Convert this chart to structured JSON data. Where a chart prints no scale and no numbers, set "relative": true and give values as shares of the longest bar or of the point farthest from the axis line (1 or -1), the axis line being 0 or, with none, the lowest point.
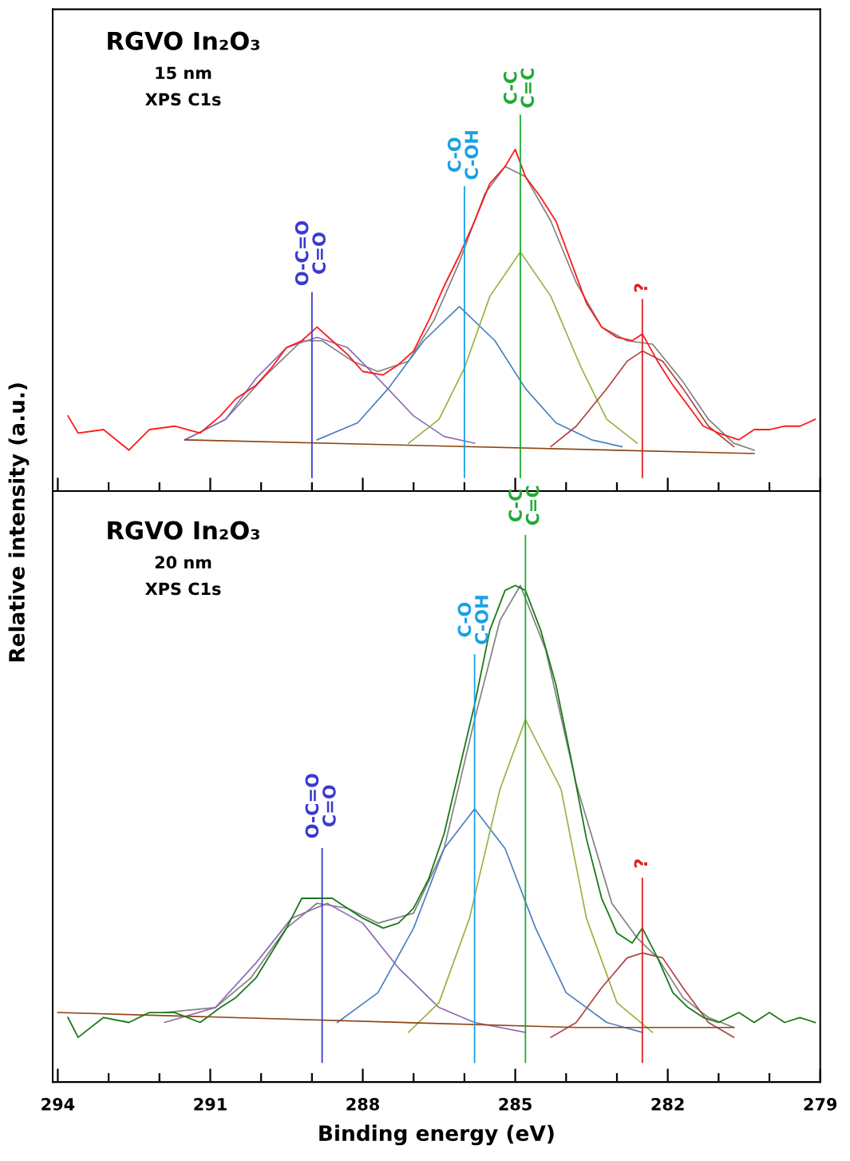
{
  "chart_data": [
    {
      "type": "line",
      "relative": true,
      "ylabel": "Relative intensity (a.u.)",
      "tick_labels": false,
      "xlim": [
        294.1,
        279.0
      ],
      "xticks": [
        294,
        {
          "value": 293,
          "label": null
        },
        {
          "value": 292,
          "label": null
        },
        291,
        {
          "value": 290,
          "label": null
        },
        {
          "value": 289,
          "label": null
        },
        288,
        {
          "value": 287,
          "label": null
        },
        {
          "value": 286,
          "label": null
        },
        285,
        {
          "value": 284,
          "label": null
        },
        {
          "value": 283,
          "label": null
        },
        282,
        {
          "value": 281,
          "label": null
        },
        {
          "value": 280,
          "label": null
        },
        279
      ],
      "annotations": [
        "RGVO In₂O₃",
        "15 nm",
        "XPS C1s"
      ],
      "ref_lines": [
        {
          "axis": "x",
          "value": 289.0,
          "label": "O-C=O\nC=O",
          "color": "#3a3ad0"
        },
        {
          "axis": "x",
          "value": 286.0,
          "label": "C-O\nC-OH",
          "color": "#1aa0e6"
        },
        {
          "axis": "x",
          "value": 284.9,
          "label": "C-C\nC=C",
          "color": "#22aa33"
        },
        {
          "axis": "x",
          "value": 282.5,
          "label": "?",
          "color": "#e02020"
        }
      ],
      "series": [
        {
          "color": "#808080",
          "x": [
            291.5,
            290.7,
            289.9,
            289.2,
            288.8,
            288.2,
            287.7,
            287.1,
            286.6,
            286.1,
            285.6,
            285.2,
            284.8,
            284.3,
            283.8,
            283.3,
            282.8,
            282.3,
            281.7,
            281.2,
            280.7,
            280.3
          ],
          "values": [
            0.15,
            0.21,
            0.34,
            0.44,
            0.44,
            0.38,
            0.35,
            0.38,
            0.5,
            0.67,
            0.87,
            0.95,
            0.92,
            0.79,
            0.61,
            0.48,
            0.44,
            0.43,
            0.32,
            0.21,
            0.14,
            0.12
          ]
        },
        {
          "color": "#8f6bb5",
          "x": [
            291.5,
            290.7,
            290.1,
            289.5,
            288.9,
            288.3,
            287.7,
            287.0,
            286.4,
            285.8
          ],
          "values": [
            0.15,
            0.21,
            0.33,
            0.42,
            0.45,
            0.42,
            0.33,
            0.22,
            0.16,
            0.14
          ]
        },
        {
          "color": "#4a7fc0",
          "x": [
            288.9,
            288.1,
            287.5,
            286.8,
            286.1,
            285.4,
            284.8,
            284.2,
            283.5,
            282.9
          ],
          "values": [
            0.15,
            0.2,
            0.3,
            0.44,
            0.54,
            0.44,
            0.3,
            0.2,
            0.15,
            0.13
          ]
        },
        {
          "color": "#9bb040",
          "x": [
            287.1,
            286.5,
            286.0,
            285.5,
            284.9,
            284.3,
            283.7,
            283.2,
            282.6
          ],
          "values": [
            0.14,
            0.21,
            0.36,
            0.57,
            0.7,
            0.57,
            0.36,
            0.21,
            0.14
          ]
        },
        {
          "color": "#b04040",
          "x": [
            284.3,
            283.8,
            283.2,
            282.8,
            282.5,
            282.1,
            281.7,
            281.2,
            280.7
          ],
          "values": [
            0.13,
            0.19,
            0.3,
            0.38,
            0.41,
            0.38,
            0.3,
            0.19,
            0.13
          ]
        },
        {
          "color": "#8b4513",
          "x": [
            291.5,
            280.3
          ],
          "values": [
            0.15,
            0.11
          ]
        },
        {
          "color": "#ff1a1a",
          "x": [
            293.8,
            293.6,
            293.1,
            292.6,
            292.2,
            291.7,
            291.2,
            290.8,
            290.5,
            290.1,
            289.8,
            289.5,
            289.2,
            288.9,
            288.6,
            288.3,
            288.0,
            287.6,
            287.3,
            287.0,
            286.7,
            286.4,
            286.1,
            285.8,
            285.5,
            285.2,
            285.0,
            284.8,
            284.5,
            284.2,
            283.9,
            283.6,
            283.3,
            283.0,
            282.7,
            282.5,
            282.2,
            281.9,
            281.6,
            281.3,
            281.0,
            280.6,
            280.3,
            280.0,
            279.7,
            279.4,
            279.1
          ],
          "values": [
            0.22,
            0.17,
            0.18,
            0.12,
            0.18,
            0.19,
            0.17,
            0.22,
            0.27,
            0.31,
            0.36,
            0.42,
            0.44,
            0.48,
            0.44,
            0.4,
            0.35,
            0.34,
            0.37,
            0.41,
            0.5,
            0.6,
            0.69,
            0.79,
            0.9,
            0.95,
            1.0,
            0.92,
            0.86,
            0.79,
            0.67,
            0.55,
            0.48,
            0.45,
            0.44,
            0.46,
            0.38,
            0.31,
            0.25,
            0.19,
            0.17,
            0.15,
            0.18,
            0.18,
            0.19,
            0.19,
            0.21
          ]
        }
      ]
    },
    {
      "type": "line",
      "relative": true,
      "xlabel": "Binding energy (eV)",
      "tick_labels": "x",
      "xlim": [
        294.1,
        279.0
      ],
      "xticks": [
        294,
        {
          "value": 293,
          "label": null
        },
        {
          "value": 292,
          "label": null
        },
        291,
        {
          "value": 290,
          "label": null
        },
        {
          "value": 289,
          "label": null
        },
        288,
        {
          "value": 287,
          "label": null
        },
        {
          "value": 286,
          "label": null
        },
        285,
        {
          "value": 284,
          "label": null
        },
        {
          "value": 283,
          "label": null
        },
        282,
        {
          "value": 281,
          "label": null
        },
        {
          "value": 280,
          "label": null
        },
        279
      ],
      "annotations": [
        "RGVO In₂O₃",
        "20 nm",
        "XPS C1s"
      ],
      "ref_lines": [
        {
          "axis": "x",
          "value": 288.8,
          "label": "O-C=O\nC=O",
          "color": "#3a3ad0"
        },
        {
          "axis": "x",
          "value": 285.8,
          "label": "C-O\nC-OH",
          "color": "#1aa0e6"
        },
        {
          "axis": "x",
          "value": 284.8,
          "label": "C-C\nC=C",
          "color": "#22aa33"
        },
        {
          "axis": "x",
          "value": 282.5,
          "label": "?",
          "color": "#e02020"
        }
      ],
      "series": [
        {
          "color": "#808080",
          "x": [
            291.9,
            290.9,
            290.2,
            289.5,
            288.9,
            288.3,
            287.7,
            287.0,
            286.4,
            285.8,
            285.3,
            284.9,
            284.4,
            283.8,
            283.1,
            282.6,
            282.2,
            281.7,
            281.2,
            280.7
          ],
          "values": [
            0.14,
            0.15,
            0.21,
            0.31,
            0.36,
            0.35,
            0.32,
            0.34,
            0.47,
            0.73,
            0.93,
            1.0,
            0.87,
            0.6,
            0.36,
            0.29,
            0.25,
            0.17,
            0.13,
            0.11
          ]
        },
        {
          "color": "#8f6bb5",
          "x": [
            291.9,
            290.9,
            290.1,
            289.4,
            288.7,
            288.0,
            287.3,
            286.5,
            285.8,
            284.8
          ],
          "values": [
            0.12,
            0.15,
            0.24,
            0.33,
            0.36,
            0.32,
            0.23,
            0.15,
            0.12,
            0.1
          ]
        },
        {
          "color": "#4a7fc0",
          "x": [
            288.5,
            287.7,
            287.0,
            286.4,
            285.8,
            285.2,
            284.6,
            284.0,
            283.2,
            282.5
          ],
          "values": [
            0.12,
            0.18,
            0.31,
            0.47,
            0.55,
            0.47,
            0.31,
            0.18,
            0.12,
            0.1
          ]
        },
        {
          "color": "#9bb040",
          "x": [
            287.1,
            286.5,
            285.9,
            285.3,
            284.8,
            284.1,
            283.6,
            283.0,
            282.3
          ],
          "values": [
            0.1,
            0.16,
            0.33,
            0.59,
            0.73,
            0.59,
            0.33,
            0.16,
            0.1
          ]
        },
        {
          "color": "#b04040",
          "x": [
            284.3,
            283.8,
            283.3,
            282.8,
            282.5,
            282.1,
            281.7,
            281.2,
            280.7
          ],
          "values": [
            0.09,
            0.12,
            0.19,
            0.25,
            0.26,
            0.25,
            0.19,
            0.12,
            0.09
          ]
        },
        {
          "color": "#8b4513",
          "x": [
            294.0,
            283.8,
            280.7
          ],
          "values": [
            0.14,
            0.11,
            0.11
          ]
        },
        {
          "color": "#1a7a1a",
          "x": [
            293.8,
            293.6,
            293.1,
            292.6,
            292.2,
            291.7,
            291.2,
            290.8,
            290.5,
            290.1,
            289.8,
            289.5,
            289.2,
            288.9,
            288.6,
            288.3,
            288.0,
            287.6,
            287.3,
            287.0,
            286.7,
            286.4,
            286.1,
            285.8,
            285.5,
            285.2,
            285.0,
            284.8,
            284.5,
            284.2,
            283.9,
            283.6,
            283.3,
            283.0,
            282.7,
            282.5,
            282.2,
            281.9,
            281.6,
            281.3,
            281.0,
            280.6,
            280.3,
            280.0,
            279.7,
            279.4,
            279.1
          ],
          "values": [
            0.13,
            0.09,
            0.13,
            0.12,
            0.14,
            0.14,
            0.12,
            0.15,
            0.17,
            0.21,
            0.26,
            0.31,
            0.37,
            0.37,
            0.37,
            0.35,
            0.33,
            0.31,
            0.32,
            0.35,
            0.41,
            0.5,
            0.63,
            0.76,
            0.91,
            0.99,
            1.0,
            0.99,
            0.91,
            0.8,
            0.65,
            0.49,
            0.37,
            0.3,
            0.28,
            0.31,
            0.25,
            0.18,
            0.15,
            0.13,
            0.12,
            0.14,
            0.12,
            0.14,
            0.12,
            0.13,
            0.12
          ]
        }
      ]
    }
  ]
}
